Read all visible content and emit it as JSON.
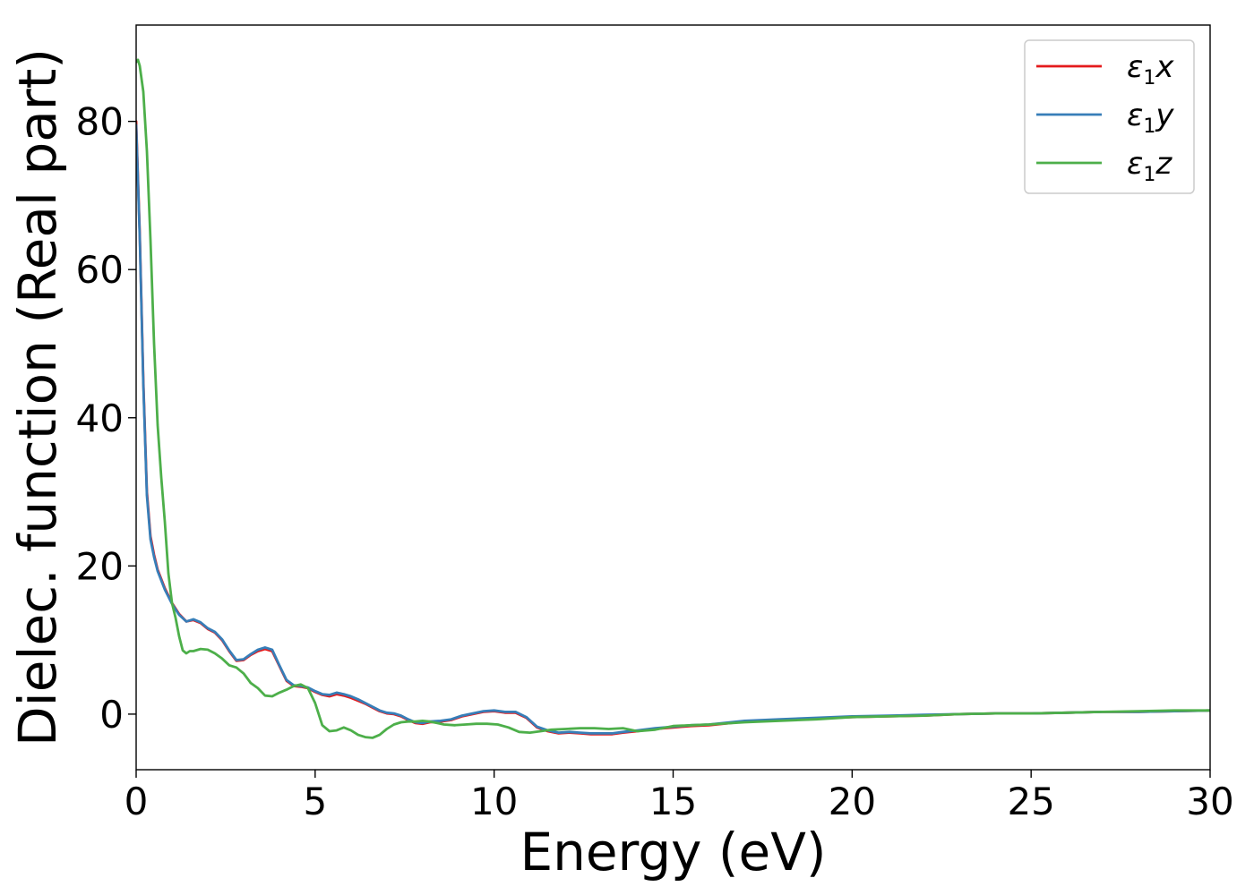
{
  "chart_data": {
    "type": "line",
    "xlabel": "Energy (eV)",
    "ylabel": "Dielec. function (Real part)",
    "xlim": [
      0,
      30
    ],
    "ylim": [
      -7.5,
      93
    ],
    "xticks": [
      0,
      5,
      10,
      15,
      20,
      25,
      30
    ],
    "yticks": [
      0,
      20,
      40,
      60,
      80
    ],
    "grid": false,
    "legend_position": "top-right",
    "series": [
      {
        "name": "ε1x",
        "legend": {
          "symbol": "ε",
          "sub": "1",
          "suffix": "x"
        },
        "color": "#e41a1c",
        "x": [
          0,
          0.1,
          0.2,
          0.3,
          0.4,
          0.5,
          0.6,
          0.8,
          1.0,
          1.2,
          1.4,
          1.6,
          1.8,
          2.0,
          2.2,
          2.4,
          2.6,
          2.8,
          3.0,
          3.2,
          3.4,
          3.6,
          3.8,
          4.0,
          4.2,
          4.4,
          4.6,
          4.8,
          5.0,
          5.2,
          5.4,
          5.6,
          5.8,
          6.0,
          6.2,
          6.4,
          6.6,
          6.8,
          7.0,
          7.2,
          7.4,
          7.6,
          7.8,
          8.0,
          8.2,
          8.5,
          8.8,
          9.1,
          9.4,
          9.7,
          10.0,
          10.3,
          10.6,
          10.9,
          11.2,
          11.5,
          11.8,
          12.1,
          12.4,
          12.7,
          13.0,
          13.3,
          13.6,
          14.0,
          14.5,
          15.0,
          15.5,
          16.0,
          17.0,
          18.0,
          19.0,
          20.0,
          21.0,
          22.0,
          23.0,
          24.0,
          25.0,
          26.0,
          27.0,
          28.0,
          29.0,
          30.0
        ],
        "values": [
          80,
          65,
          45,
          30,
          24,
          21.5,
          19.5,
          17,
          15,
          13.5,
          12.5,
          12.7,
          12.3,
          11.5,
          11,
          10,
          8.5,
          7.2,
          7.3,
          8,
          8.5,
          8.8,
          8.5,
          6.5,
          4.5,
          3.8,
          3.7,
          3.5,
          3,
          2.6,
          2.4,
          2.7,
          2.5,
          2.2,
          1.8,
          1.4,
          0.9,
          0.4,
          0.1,
          0,
          -0.3,
          -0.8,
          -1.2,
          -1.3,
          -1.1,
          -1,
          -0.8,
          -0.3,
          0,
          0.3,
          0.4,
          0.2,
          0.2,
          -0.5,
          -1.8,
          -2.3,
          -2.6,
          -2.5,
          -2.6,
          -2.7,
          -2.7,
          -2.7,
          -2.5,
          -2.3,
          -2.0,
          -1.8,
          -1.6,
          -1.5,
          -1.0,
          -0.8,
          -0.6,
          -0.4,
          -0.3,
          -0.2,
          0,
          0.1,
          0.1,
          0.2,
          0.3,
          0.3,
          0.4,
          0.5
        ]
      },
      {
        "name": "ε1y",
        "legend": {
          "symbol": "ε",
          "sub": "1",
          "suffix": "y"
        },
        "color": "#377eb8",
        "x": [
          0,
          0.1,
          0.2,
          0.3,
          0.4,
          0.5,
          0.6,
          0.8,
          1.0,
          1.2,
          1.4,
          1.6,
          1.8,
          2.0,
          2.2,
          2.4,
          2.6,
          2.8,
          3.0,
          3.2,
          3.4,
          3.6,
          3.8,
          4.0,
          4.2,
          4.4,
          4.6,
          4.8,
          5.0,
          5.2,
          5.4,
          5.6,
          5.8,
          6.0,
          6.2,
          6.4,
          6.6,
          6.8,
          7.0,
          7.2,
          7.4,
          7.6,
          7.8,
          8.0,
          8.2,
          8.5,
          8.8,
          9.1,
          9.4,
          9.7,
          10.0,
          10.3,
          10.6,
          10.9,
          11.2,
          11.5,
          11.8,
          12.1,
          12.4,
          12.7,
          13.0,
          13.3,
          13.6,
          14.0,
          14.5,
          15.0,
          15.5,
          16.0,
          17.0,
          18.0,
          19.0,
          20.0,
          21.0,
          22.0,
          23.0,
          24.0,
          25.0,
          26.0,
          27.0,
          28.0,
          29.0,
          30.0
        ],
        "values": [
          79.5,
          64.5,
          44.5,
          29.5,
          23.6,
          21.2,
          19.3,
          16.8,
          14.9,
          13.4,
          12.5,
          12.8,
          12.4,
          11.6,
          11.1,
          10.1,
          8.6,
          7.3,
          7.4,
          8.1,
          8.7,
          9.0,
          8.7,
          6.6,
          4.6,
          3.9,
          3.8,
          3.6,
          3.1,
          2.7,
          2.6,
          2.9,
          2.7,
          2.4,
          2.0,
          1.5,
          1.0,
          0.5,
          0.2,
          0.1,
          -0.2,
          -0.7,
          -1.1,
          -1.2,
          -1.0,
          -0.9,
          -0.7,
          -0.2,
          0.1,
          0.4,
          0.5,
          0.3,
          0.3,
          -0.4,
          -1.7,
          -2.2,
          -2.5,
          -2.4,
          -2.5,
          -2.6,
          -2.6,
          -2.6,
          -2.4,
          -2.2,
          -1.9,
          -1.7,
          -1.5,
          -1.4,
          -0.9,
          -0.7,
          -0.5,
          -0.3,
          -0.2,
          -0.1,
          0,
          0.1,
          0.1,
          0.2,
          0.3,
          0.3,
          0.4,
          0.5
        ]
      },
      {
        "name": "ε1z",
        "legend": {
          "symbol": "ε",
          "sub": "1",
          "suffix": "z"
        },
        "color": "#4daf4a",
        "x": [
          0,
          0.05,
          0.1,
          0.2,
          0.3,
          0.4,
          0.5,
          0.6,
          0.7,
          0.8,
          0.9,
          1.0,
          1.1,
          1.2,
          1.3,
          1.4,
          1.5,
          1.6,
          1.8,
          2.0,
          2.2,
          2.4,
          2.6,
          2.8,
          3.0,
          3.2,
          3.4,
          3.6,
          3.8,
          4.0,
          4.2,
          4.4,
          4.6,
          4.8,
          5.0,
          5.2,
          5.4,
          5.6,
          5.8,
          6.0,
          6.2,
          6.4,
          6.6,
          6.8,
          7.0,
          7.2,
          7.4,
          7.6,
          7.8,
          8.0,
          8.2,
          8.4,
          8.6,
          8.9,
          9.2,
          9.5,
          9.8,
          10.1,
          10.4,
          10.7,
          11.0,
          11.3,
          11.6,
          12.0,
          12.4,
          12.8,
          13.2,
          13.6,
          14.0,
          14.5,
          15.0,
          15.5,
          16.0,
          17.0,
          18.0,
          19.0,
          20.0,
          21.0,
          22.0,
          23.0,
          24.0,
          25.0,
          26.0,
          27.0,
          28.0,
          29.0,
          30.0
        ],
        "values": [
          88,
          88.3,
          87.5,
          84,
          76,
          64,
          50,
          39,
          32,
          26,
          19,
          15,
          13,
          10.5,
          8.6,
          8.2,
          8.5,
          8.5,
          8.8,
          8.7,
          8.2,
          7.5,
          6.6,
          6.3,
          5.5,
          4.2,
          3.5,
          2.5,
          2.4,
          2.9,
          3.3,
          3.8,
          4.0,
          3.5,
          1.5,
          -1.5,
          -2.3,
          -2.2,
          -1.8,
          -2.2,
          -2.8,
          -3.1,
          -3.2,
          -2.8,
          -2.0,
          -1.4,
          -1.1,
          -1.0,
          -1.0,
          -0.9,
          -1.0,
          -1.2,
          -1.4,
          -1.5,
          -1.4,
          -1.3,
          -1.3,
          -1.4,
          -1.8,
          -2.4,
          -2.5,
          -2.3,
          -2.1,
          -2.0,
          -1.9,
          -1.9,
          -2.0,
          -1.9,
          -2.3,
          -2.1,
          -1.6,
          -1.5,
          -1.4,
          -1.1,
          -0.9,
          -0.7,
          -0.4,
          -0.3,
          -0.2,
          0,
          0.1,
          0.1,
          0.2,
          0.3,
          0.4,
          0.5,
          0.5
        ]
      }
    ]
  }
}
